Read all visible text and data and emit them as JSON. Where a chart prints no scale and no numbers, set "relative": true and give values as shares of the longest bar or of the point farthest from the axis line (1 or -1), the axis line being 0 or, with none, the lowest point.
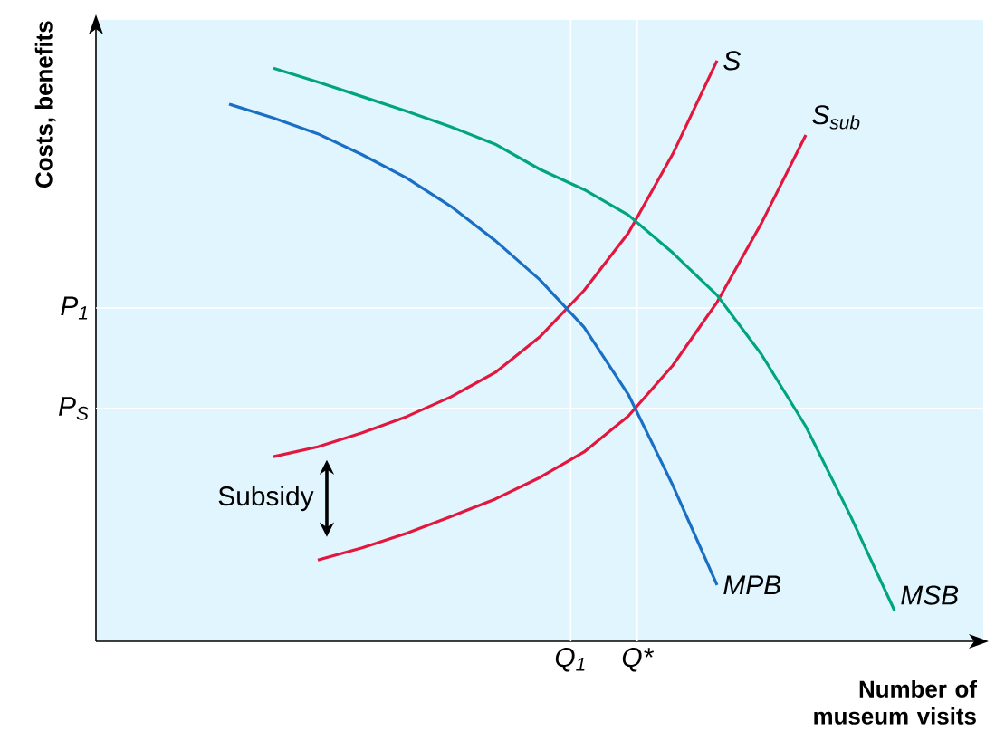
{
  "chart_data": {
    "type": "line",
    "relative": true,
    "xlabel": "Number of museum visits",
    "ylabel": "Costs, benefits",
    "marker": "none",
    "line_style": "solid",
    "categories": [
      null,
      null,
      null,
      null,
      null,
      null,
      null,
      null,
      null,
      null,
      null,
      null,
      null,
      null,
      null,
      null,
      null,
      null,
      null,
      null,
      null
    ],
    "ref_lines": [
      {
        "axis": "y",
        "value": 0.574,
        "label": "P$_{1}$",
        "color": "#ffffff"
      },
      {
        "axis": "y",
        "value": 0.401,
        "label": "P$_{S}$",
        "color": "#ffffff"
      }
    ],
    "annotations": [
      "Subsidy",
      "Q$_{1}$",
      "Q*"
    ],
    "series": [
      {
        "name": "S",
        "color": "#e3173e",
        "values": [
          null,
          null,
          null,
          null,
          0.318,
          0.335,
          0.359,
          0.387,
          0.421,
          0.463,
          0.524,
          0.604,
          0.703,
          0.839,
          1,
          null,
          null,
          null,
          null,
          null,
          null
        ]
      },
      {
        "name": "S$_{sub}$",
        "color": "#e3173e",
        "values": [
          null,
          null,
          null,
          null,
          null,
          0.14,
          0.161,
          0.186,
          0.215,
          0.245,
          0.282,
          0.326,
          0.388,
          0.475,
          0.584,
          0.72,
          0.872,
          null,
          null,
          null,
          null
        ]
      },
      {
        "name": "MPB",
        "color": "#1a6fc4",
        "values": [
          null,
          null,
          null,
          0.925,
          0.901,
          0.874,
          0.838,
          0.798,
          0.749,
          0.69,
          0.623,
          0.541,
          0.425,
          0.269,
          0.097,
          null,
          null,
          null,
          null,
          null,
          null
        ]
      },
      {
        "name": "MSB",
        "color": "#00a57e",
        "values": [
          null,
          null,
          null,
          null,
          0.987,
          0.963,
          0.938,
          0.913,
          0.886,
          0.856,
          0.813,
          0.778,
          0.734,
          0.669,
          0.596,
          0.494,
          0.37,
          0.217,
          0.053,
          null,
          null
        ]
      }
    ]
  }
}
